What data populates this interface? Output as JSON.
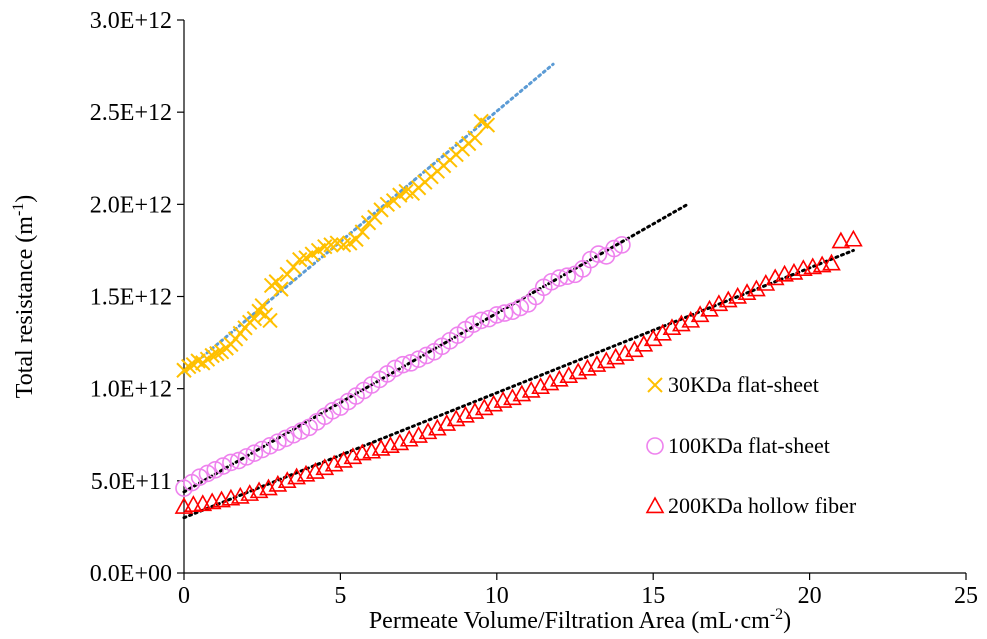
{
  "chart_data": {
    "type": "scatter",
    "title": "",
    "xlabel": "Permeate Volume/Filtration Area (mL·cm",
    "xlabel_sup": "-2",
    "xlabel_end": ")",
    "ylabel": "Total resistance (m",
    "ylabel_sup": "-1",
    "ylabel_end": ")",
    "xlim": [
      0,
      25
    ],
    "ylim": [
      0,
      3000000000000.0
    ],
    "x_ticks": [
      0,
      5,
      10,
      15,
      20,
      25
    ],
    "x_tick_labels": [
      "0",
      "5",
      "10",
      "15",
      "20",
      "25"
    ],
    "y_ticks": [
      0,
      500000000000.0,
      1000000000000.0,
      1500000000000.0,
      2000000000000.0,
      2500000000000.0,
      3000000000000.0
    ],
    "y_tick_labels": [
      "0.0E+00",
      "5.0E+11",
      "1.0E+12",
      "1.5E+12",
      "2.0E+12",
      "2.5E+12",
      "3.0E+12"
    ],
    "grid": false,
    "legend_position": "bottom-right",
    "series": [
      {
        "name": "30KDa flat-sheet",
        "marker": "x",
        "color": "#FFC000",
        "trendline": {
          "color": "#5B9BD5",
          "x": [
            0,
            11.8
          ],
          "y": [
            1090000000000.0,
            2760000000000.0
          ]
        },
        "points": [
          [
            0.0,
            1100000000000.0
          ],
          [
            0.15,
            1120000000000.0
          ],
          [
            0.3,
            1130000000000.0
          ],
          [
            0.45,
            1150000000000.0
          ],
          [
            0.6,
            1140000000000.0
          ],
          [
            0.75,
            1160000000000.0
          ],
          [
            0.9,
            1180000000000.0
          ],
          [
            1.05,
            1190000000000.0
          ],
          [
            1.2,
            1200000000000.0
          ],
          [
            1.35,
            1220000000000.0
          ],
          [
            1.5,
            1240000000000.0
          ],
          [
            1.65,
            1270000000000.0
          ],
          [
            1.8,
            1300000000000.0
          ],
          [
            1.95,
            1330000000000.0
          ],
          [
            2.1,
            1360000000000.0
          ],
          [
            2.25,
            1380000000000.0
          ],
          [
            2.4,
            1420000000000.0
          ],
          [
            2.5,
            1450000000000.0
          ],
          [
            2.6,
            1400000000000.0
          ],
          [
            2.75,
            1370000000000.0
          ],
          [
            2.8,
            1560000000000.0
          ],
          [
            2.95,
            1580000000000.0
          ],
          [
            3.1,
            1540000000000.0
          ],
          [
            3.3,
            1620000000000.0
          ],
          [
            3.5,
            1660000000000.0
          ],
          [
            3.7,
            1700000000000.0
          ],
          [
            3.9,
            1710000000000.0
          ],
          [
            4.1,
            1730000000000.0
          ],
          [
            4.3,
            1750000000000.0
          ],
          [
            4.5,
            1770000000000.0
          ],
          [
            4.7,
            1780000000000.0
          ],
          [
            4.9,
            1790000000000.0
          ],
          [
            5.1,
            1780000000000.0
          ],
          [
            5.3,
            1790000000000.0
          ],
          [
            5.5,
            1810000000000.0
          ],
          [
            5.7,
            1850000000000.0
          ],
          [
            5.9,
            1900000000000.0
          ],
          [
            6.1,
            1930000000000.0
          ],
          [
            6.3,
            1970000000000.0
          ],
          [
            6.5,
            2000000000000.0
          ],
          [
            6.7,
            2020000000000.0
          ],
          [
            6.9,
            2050000000000.0
          ],
          [
            7.1,
            2070000000000.0
          ],
          [
            7.3,
            2060000000000.0
          ],
          [
            7.5,
            2090000000000.0
          ],
          [
            7.7,
            2120000000000.0
          ],
          [
            7.9,
            2150000000000.0
          ],
          [
            8.1,
            2180000000000.0
          ],
          [
            8.3,
            2210000000000.0
          ],
          [
            8.5,
            2240000000000.0
          ],
          [
            8.7,
            2270000000000.0
          ],
          [
            8.9,
            2300000000000.0
          ],
          [
            9.1,
            2330000000000.0
          ],
          [
            9.3,
            2360000000000.0
          ],
          [
            9.5,
            2450000000000.0
          ],
          [
            9.7,
            2430000000000.0
          ]
        ]
      },
      {
        "name": "100KDa flat-sheet",
        "marker": "circle",
        "color": "#EE82EE",
        "trendline": {
          "color": "#000000",
          "x": [
            0,
            16.1
          ],
          "y": [
            440000000000.0,
            2000000000000.0
          ]
        },
        "points": [
          [
            0.0,
            460000000000.0
          ],
          [
            0.25,
            490000000000.0
          ],
          [
            0.5,
            520000000000.0
          ],
          [
            0.75,
            540000000000.0
          ],
          [
            1.0,
            560000000000.0
          ],
          [
            1.25,
            580000000000.0
          ],
          [
            1.5,
            600000000000.0
          ],
          [
            1.75,
            610000000000.0
          ],
          [
            2.0,
            630000000000.0
          ],
          [
            2.25,
            650000000000.0
          ],
          [
            2.5,
            670000000000.0
          ],
          [
            2.75,
            690000000000.0
          ],
          [
            3.0,
            710000000000.0
          ],
          [
            3.25,
            730000000000.0
          ],
          [
            3.5,
            750000000000.0
          ],
          [
            3.75,
            770000000000.0
          ],
          [
            4.0,
            790000000000.0
          ],
          [
            4.25,
            820000000000.0
          ],
          [
            4.5,
            850000000000.0
          ],
          [
            4.75,
            880000000000.0
          ],
          [
            5.0,
            900000000000.0
          ],
          [
            5.25,
            930000000000.0
          ],
          [
            5.5,
            960000000000.0
          ],
          [
            5.75,
            990000000000.0
          ],
          [
            6.0,
            1020000000000.0
          ],
          [
            6.25,
            1050000000000.0
          ],
          [
            6.5,
            1080000000000.0
          ],
          [
            6.75,
            1110000000000.0
          ],
          [
            7.0,
            1130000000000.0
          ],
          [
            7.25,
            1140000000000.0
          ],
          [
            7.5,
            1160000000000.0
          ],
          [
            7.75,
            1180000000000.0
          ],
          [
            8.0,
            1200000000000.0
          ],
          [
            8.25,
            1230000000000.0
          ],
          [
            8.5,
            1260000000000.0
          ],
          [
            8.75,
            1290000000000.0
          ],
          [
            9.0,
            1320000000000.0
          ],
          [
            9.25,
            1350000000000.0
          ],
          [
            9.5,
            1370000000000.0
          ],
          [
            9.75,
            1380000000000.0
          ],
          [
            10.0,
            1400000000000.0
          ],
          [
            10.25,
            1410000000000.0
          ],
          [
            10.5,
            1420000000000.0
          ],
          [
            10.75,
            1440000000000.0
          ],
          [
            11.0,
            1460000000000.0
          ],
          [
            11.25,
            1500000000000.0
          ],
          [
            11.5,
            1550000000000.0
          ],
          [
            11.75,
            1580000000000.0
          ],
          [
            12.0,
            1600000000000.0
          ],
          [
            12.25,
            1610000000000.0
          ],
          [
            12.5,
            1620000000000.0
          ],
          [
            12.75,
            1650000000000.0
          ],
          [
            13.0,
            1700000000000.0
          ],
          [
            13.25,
            1730000000000.0
          ],
          [
            13.5,
            1720000000000.0
          ],
          [
            13.75,
            1760000000000.0
          ],
          [
            14.0,
            1780000000000.0
          ]
        ]
      },
      {
        "name": "200KDa hollow fiber",
        "marker": "triangle",
        "color": "#FF0000",
        "trendline": {
          "color": "#000000",
          "x": [
            0,
            21.4
          ],
          "y": [
            300000000000.0,
            1750000000000.0
          ]
        },
        "points": [
          [
            0.0,
            360000000000.0
          ],
          [
            0.3,
            370000000000.0
          ],
          [
            0.6,
            375000000000.0
          ],
          [
            0.9,
            385000000000.0
          ],
          [
            1.2,
            395000000000.0
          ],
          [
            1.5,
            405000000000.0
          ],
          [
            1.8,
            415000000000.0
          ],
          [
            2.1,
            430000000000.0
          ],
          [
            2.4,
            445000000000.0
          ],
          [
            2.7,
            460000000000.0
          ],
          [
            3.0,
            480000000000.0
          ],
          [
            3.3,
            500000000000.0
          ],
          [
            3.6,
            520000000000.0
          ],
          [
            3.9,
            535000000000.0
          ],
          [
            4.2,
            550000000000.0
          ],
          [
            4.5,
            570000000000.0
          ],
          [
            4.8,
            590000000000.0
          ],
          [
            5.1,
            610000000000.0
          ],
          [
            5.4,
            630000000000.0
          ],
          [
            5.7,
            650000000000.0
          ],
          [
            6.0,
            660000000000.0
          ],
          [
            6.3,
            675000000000.0
          ],
          [
            6.6,
            690000000000.0
          ],
          [
            6.9,
            705000000000.0
          ],
          [
            7.2,
            725000000000.0
          ],
          [
            7.5,
            745000000000.0
          ],
          [
            7.8,
            765000000000.0
          ],
          [
            8.1,
            785000000000.0
          ],
          [
            8.4,
            810000000000.0
          ],
          [
            8.7,
            835000000000.0
          ],
          [
            9.0,
            855000000000.0
          ],
          [
            9.3,
            875000000000.0
          ],
          [
            9.6,
            895000000000.0
          ],
          [
            9.9,
            915000000000.0
          ],
          [
            10.2,
            935000000000.0
          ],
          [
            10.5,
            950000000000.0
          ],
          [
            10.8,
            970000000000.0
          ],
          [
            11.1,
            990000000000.0
          ],
          [
            11.4,
            1010000000000.0
          ],
          [
            11.7,
            1030000000000.0
          ],
          [
            12.0,
            1050000000000.0
          ],
          [
            12.3,
            1070000000000.0
          ],
          [
            12.6,
            1090000000000.0
          ],
          [
            12.9,
            1110000000000.0
          ],
          [
            13.2,
            1130000000000.0
          ],
          [
            13.5,
            1150000000000.0
          ],
          [
            13.8,
            1170000000000.0
          ],
          [
            14.1,
            1190000000000.0
          ],
          [
            14.4,
            1210000000000.0
          ],
          [
            14.7,
            1240000000000.0
          ],
          [
            15.0,
            1270000000000.0
          ],
          [
            15.3,
            1300000000000.0
          ],
          [
            15.6,
            1330000000000.0
          ],
          [
            15.9,
            1350000000000.0
          ],
          [
            16.2,
            1370000000000.0
          ],
          [
            16.5,
            1400000000000.0
          ],
          [
            16.8,
            1430000000000.0
          ],
          [
            17.1,
            1460000000000.0
          ],
          [
            17.4,
            1480000000000.0
          ],
          [
            17.7,
            1500000000000.0
          ],
          [
            18.0,
            1520000000000.0
          ],
          [
            18.3,
            1540000000000.0
          ],
          [
            18.6,
            1570000000000.0
          ],
          [
            18.9,
            1600000000000.0
          ],
          [
            19.2,
            1620000000000.0
          ],
          [
            19.5,
            1630000000000.0
          ],
          [
            19.8,
            1650000000000.0
          ],
          [
            20.1,
            1660000000000.0
          ],
          [
            20.4,
            1670000000000.0
          ],
          [
            20.7,
            1680000000000.0
          ],
          [
            21.0,
            1800000000000.0
          ],
          [
            21.4,
            1810000000000.0
          ]
        ]
      }
    ]
  }
}
